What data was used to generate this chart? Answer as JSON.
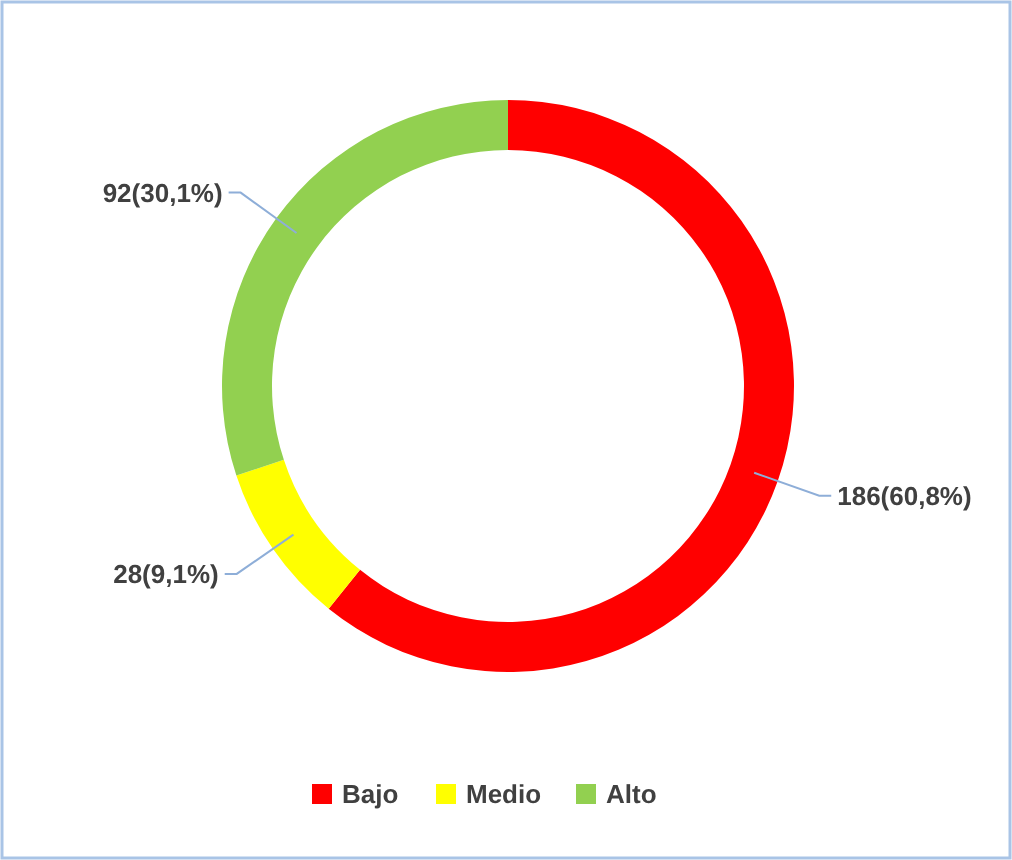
{
  "chart_data": {
    "type": "donut",
    "categories": [
      "Bajo",
      "Medio",
      "Alto"
    ],
    "values": [
      186,
      28,
      92
    ],
    "colors": [
      "#ff0000",
      "#ffff00",
      "#92d050"
    ],
    "value_labels": [
      "186(60,8%)",
      "28(9,1%)",
      "92(30,1%)"
    ],
    "legend": "bottom"
  }
}
